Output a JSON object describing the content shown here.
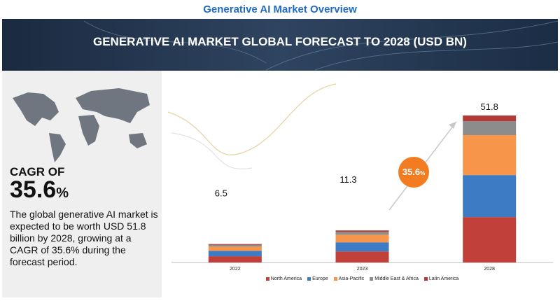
{
  "header": {
    "title": "Generative AI Market Overview",
    "banner": "GENERATIVE AI MARKET GLOBAL FORECAST TO 2028 (USD BN)"
  },
  "summary": {
    "cagr_label": "CAGR OF",
    "cagr_value": 35.6,
    "cagr_unit": "%",
    "text": "The global generative AI market is expected to be worth USD 51.8 billion by 2028, growing at a CAGR of 35.6% during the forecast period."
  },
  "chart_data": {
    "type": "stacked_bar",
    "categories": [
      "2022",
      "2023",
      "2028"
    ],
    "totals": [
      6.5,
      11.3,
      51.8
    ],
    "series": [
      {
        "name": "North America",
        "color": "#c2403a",
        "values": [
          2.2,
          3.9,
          16.0
        ]
      },
      {
        "name": "Europe",
        "color": "#3d7bc4",
        "values": [
          1.9,
          3.2,
          14.8
        ]
      },
      {
        "name": "Asia-Pacific",
        "color": "#f7964a",
        "values": [
          1.5,
          2.7,
          14.1
        ]
      },
      {
        "name": "Middle East & Africa",
        "color": "#8c8c8c",
        "values": [
          0.6,
          1.0,
          4.9
        ]
      },
      {
        "name": "Latin America",
        "color": "#b33a36",
        "values": [
          0.3,
          0.5,
          2.0
        ]
      }
    ]
  }
}
